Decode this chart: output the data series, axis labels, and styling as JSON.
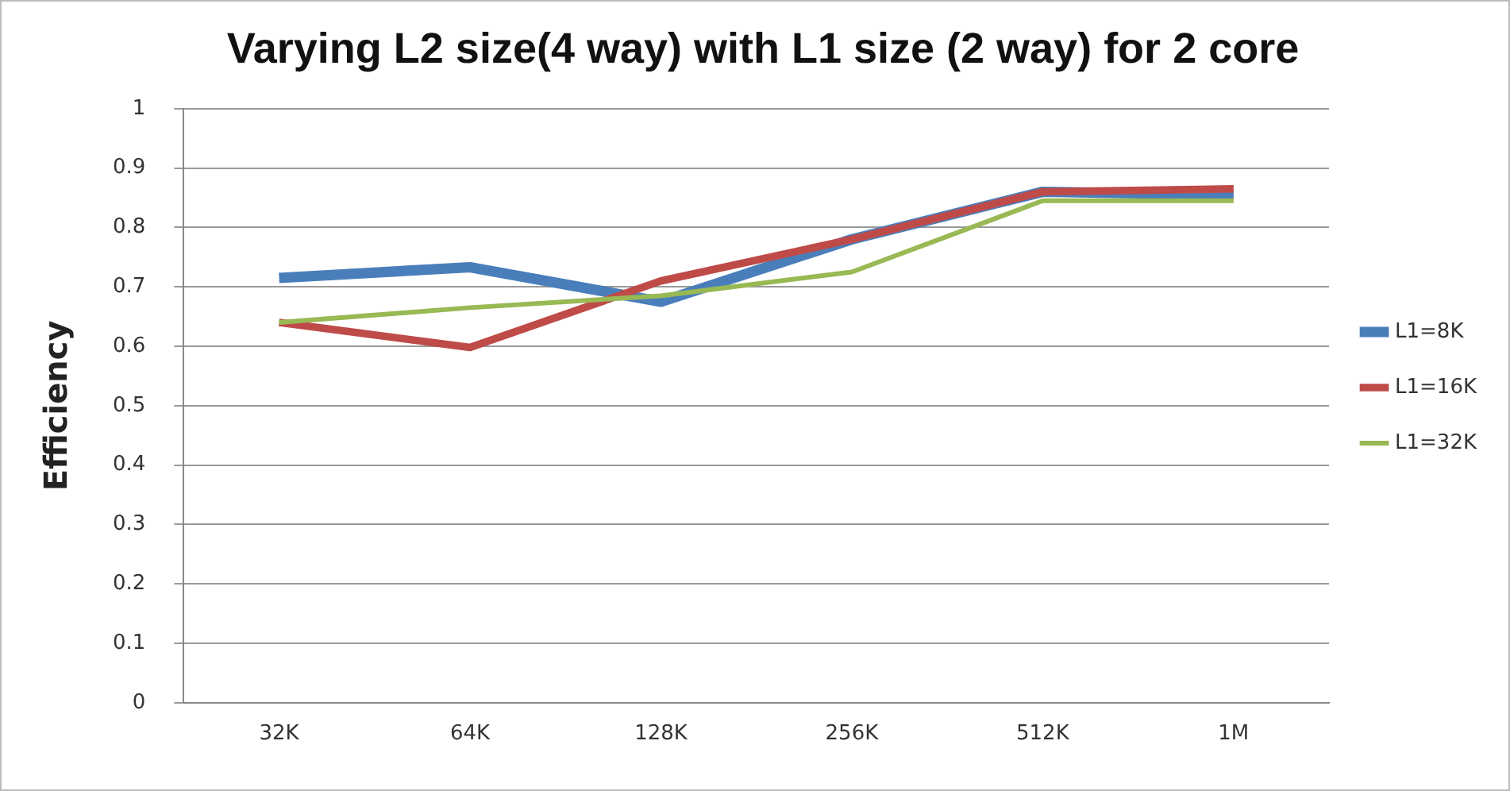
{
  "chart_data": {
    "type": "line",
    "title": "Varying L2 size(4 way) with L1 size (2 way) for 2 core",
    "ylabel": "Efficiency",
    "categories": [
      "32K",
      "64K",
      "128K",
      "256K",
      "512K",
      "1M"
    ],
    "series": [
      {
        "name": "L1=8K",
        "color": "#4a7ebb",
        "values": [
          0.715,
          0.733,
          0.675,
          0.78,
          0.86,
          0.855
        ]
      },
      {
        "name": "L1=16K",
        "color": "#be4b48",
        "values": [
          0.64,
          0.598,
          0.71,
          0.78,
          0.86,
          0.865
        ]
      },
      {
        "name": "L1=32K",
        "color": "#98b954",
        "values": [
          0.64,
          0.665,
          0.685,
          0.725,
          0.845,
          0.845
        ]
      }
    ],
    "ylim": [
      0,
      1
    ],
    "yticks": [
      0,
      0.1,
      0.2,
      0.3,
      0.4,
      0.5,
      0.6,
      0.7,
      0.8,
      0.9,
      1
    ],
    "grid": "y",
    "legend": "right",
    "marker": "none",
    "line_style": "solid"
  }
}
